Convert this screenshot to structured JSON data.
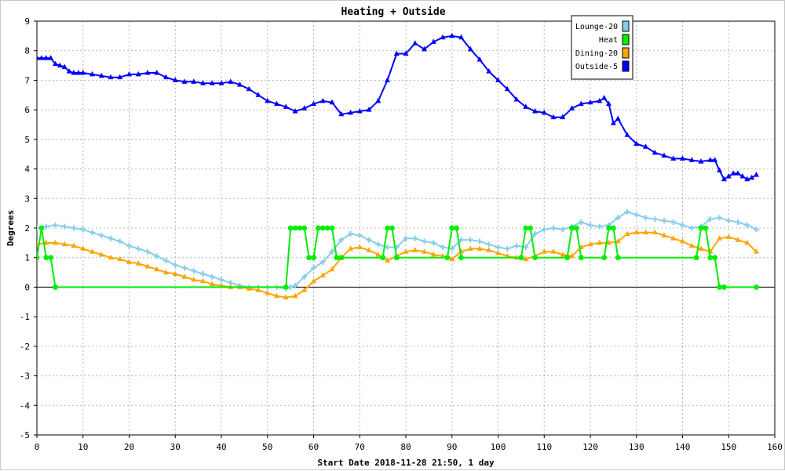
{
  "chart_data": {
    "type": "line",
    "title": "Heating + Outside",
    "xlabel": "Start Date 2018-11-28 21:50, 1 day",
    "ylabel": "Degrees",
    "xlim": [
      0,
      160
    ],
    "ylim": [
      -5,
      9
    ],
    "x_ticks": [
      0,
      10,
      20,
      30,
      40,
      50,
      60,
      70,
      80,
      90,
      100,
      110,
      120,
      130,
      140,
      150,
      160
    ],
    "y_ticks": [
      -5,
      -4,
      -3,
      -2,
      -1,
      0,
      1,
      2,
      3,
      4,
      5,
      6,
      7,
      8,
      9
    ],
    "grid": true,
    "zero_line": true,
    "legend_position": "top-right",
    "series": [
      {
        "name": "Outside-5",
        "color": "#0000ff",
        "marker": "triangle",
        "x": [
          0,
          1,
          2,
          3,
          4,
          5,
          6,
          7,
          8,
          9,
          10,
          12,
          14,
          16,
          18,
          20,
          22,
          24,
          26,
          28,
          30,
          32,
          34,
          36,
          38,
          40,
          42,
          44,
          46,
          48,
          50,
          52,
          54,
          56,
          58,
          60,
          62,
          64,
          66,
          68,
          70,
          72,
          74,
          76,
          78,
          80,
          82,
          84,
          86,
          88,
          90,
          92,
          94,
          96,
          98,
          100,
          102,
          104,
          106,
          108,
          110,
          112,
          114,
          116,
          118,
          120,
          122,
          123,
          124,
          125,
          126,
          128,
          130,
          132,
          134,
          136,
          138,
          140,
          142,
          144,
          146,
          147,
          148,
          149,
          150,
          151,
          152,
          153,
          154,
          155,
          156
        ],
        "y": [
          7.75,
          7.75,
          7.75,
          7.75,
          7.55,
          7.5,
          7.45,
          7.3,
          7.25,
          7.25,
          7.25,
          7.2,
          7.15,
          7.1,
          7.1,
          7.2,
          7.2,
          7.25,
          7.25,
          7.1,
          7.0,
          6.95,
          6.95,
          6.9,
          6.9,
          6.9,
          6.95,
          6.85,
          6.7,
          6.5,
          6.3,
          6.2,
          6.1,
          5.95,
          6.05,
          6.2,
          6.3,
          6.25,
          5.85,
          5.9,
          5.95,
          6.0,
          6.3,
          7.0,
          7.9,
          7.9,
          8.25,
          8.05,
          8.3,
          8.45,
          8.5,
          8.45,
          8.05,
          7.7,
          7.3,
          7.0,
          6.7,
          6.35,
          6.1,
          5.95,
          5.9,
          5.75,
          5.75,
          6.05,
          6.2,
          6.25,
          6.3,
          6.4,
          6.2,
          5.55,
          5.7,
          5.15,
          4.85,
          4.75,
          4.55,
          4.45,
          4.35,
          4.35,
          4.3,
          4.25,
          4.3,
          4.3,
          3.95,
          3.65,
          3.75,
          3.85,
          3.85,
          3.75,
          3.65,
          3.7,
          3.8
        ]
      },
      {
        "name": "Lounge-20",
        "color": "#87ceeb",
        "marker": "plus",
        "x": [
          0,
          2,
          4,
          6,
          8,
          10,
          12,
          14,
          16,
          18,
          20,
          22,
          24,
          26,
          28,
          30,
          32,
          34,
          36,
          38,
          40,
          42,
          44,
          46,
          48,
          50,
          52,
          54,
          55,
          56,
          58,
          60,
          62,
          64,
          66,
          68,
          70,
          72,
          74,
          76,
          78,
          80,
          82,
          84,
          86,
          88,
          90,
          92,
          94,
          96,
          98,
          100,
          102,
          104,
          106,
          108,
          110,
          112,
          114,
          116,
          118,
          120,
          122,
          124,
          126,
          128,
          130,
          132,
          134,
          136,
          138,
          140,
          142,
          144,
          146,
          148,
          150,
          152,
          154,
          156
        ],
        "y": [
          2.0,
          2.05,
          2.1,
          2.05,
          2.0,
          1.95,
          1.85,
          1.75,
          1.65,
          1.55,
          1.4,
          1.3,
          1.2,
          1.05,
          0.9,
          0.75,
          0.65,
          0.55,
          0.45,
          0.35,
          0.25,
          0.15,
          0.05,
          0.0,
          0.0,
          0.0,
          0.0,
          -0.05,
          0.0,
          0.05,
          0.35,
          0.65,
          0.85,
          1.2,
          1.6,
          1.8,
          1.75,
          1.6,
          1.45,
          1.35,
          1.35,
          1.65,
          1.65,
          1.55,
          1.5,
          1.35,
          1.3,
          1.6,
          1.6,
          1.55,
          1.45,
          1.35,
          1.3,
          1.4,
          1.35,
          1.8,
          1.95,
          2.0,
          1.95,
          2.05,
          2.2,
          2.1,
          2.05,
          2.1,
          2.35,
          2.55,
          2.45,
          2.35,
          2.3,
          2.25,
          2.2,
          2.1,
          2.0,
          2.05,
          2.3,
          2.35,
          2.25,
          2.2,
          2.1,
          1.95
        ]
      },
      {
        "name": "Dining-20",
        "color": "#ffa500",
        "marker": "triangle",
        "x": [
          0,
          2,
          4,
          6,
          8,
          10,
          12,
          14,
          16,
          18,
          20,
          22,
          24,
          26,
          28,
          30,
          32,
          34,
          36,
          38,
          40,
          42,
          44,
          46,
          48,
          50,
          52,
          54,
          56,
          58,
          60,
          62,
          64,
          66,
          68,
          70,
          72,
          74,
          76,
          78,
          80,
          82,
          84,
          86,
          88,
          90,
          92,
          94,
          96,
          98,
          100,
          102,
          104,
          106,
          108,
          110,
          112,
          114,
          116,
          118,
          120,
          122,
          124,
          126,
          128,
          130,
          132,
          134,
          136,
          138,
          140,
          142,
          144,
          146,
          148,
          150,
          152,
          154,
          156
        ],
        "y": [
          1.45,
          1.5,
          1.5,
          1.45,
          1.4,
          1.3,
          1.2,
          1.1,
          1.0,
          0.95,
          0.85,
          0.8,
          0.7,
          0.6,
          0.5,
          0.45,
          0.35,
          0.25,
          0.2,
          0.1,
          0.05,
          0.0,
          0.0,
          -0.05,
          -0.1,
          -0.2,
          -0.3,
          -0.35,
          -0.3,
          -0.1,
          0.2,
          0.4,
          0.6,
          1.0,
          1.3,
          1.35,
          1.25,
          1.1,
          0.9,
          1.05,
          1.2,
          1.25,
          1.2,
          1.1,
          1.05,
          0.95,
          1.2,
          1.3,
          1.3,
          1.25,
          1.15,
          1.05,
          1.0,
          0.95,
          1.05,
          1.2,
          1.2,
          1.1,
          1.05,
          1.35,
          1.45,
          1.5,
          1.5,
          1.55,
          1.8,
          1.85,
          1.85,
          1.85,
          1.75,
          1.65,
          1.55,
          1.4,
          1.3,
          1.2,
          1.65,
          1.7,
          1.6,
          1.5,
          1.2
        ]
      },
      {
        "name": "Heat",
        "color": "#00ee00",
        "marker": "circle",
        "x": [
          0,
          1,
          2,
          3,
          4,
          54,
          55,
          56,
          57,
          58,
          59,
          60,
          61,
          62,
          63,
          64,
          65,
          66,
          75,
          76,
          77,
          78,
          89,
          90,
          91,
          92,
          105,
          106,
          107,
          108,
          115,
          116,
          117,
          118,
          123,
          124,
          125,
          126,
          143,
          144,
          145,
          146,
          147,
          148,
          149,
          156
        ],
        "y": [
          1,
          2,
          1,
          1,
          0,
          0,
          2,
          2,
          2,
          2,
          1,
          1,
          2,
          2,
          2,
          2,
          1,
          1,
          1,
          2,
          2,
          1,
          1,
          2,
          2,
          1,
          1,
          2,
          2,
          1,
          1,
          2,
          2,
          1,
          1,
          2,
          2,
          1,
          1,
          2,
          2,
          1,
          1,
          0,
          0,
          0
        ]
      }
    ]
  }
}
